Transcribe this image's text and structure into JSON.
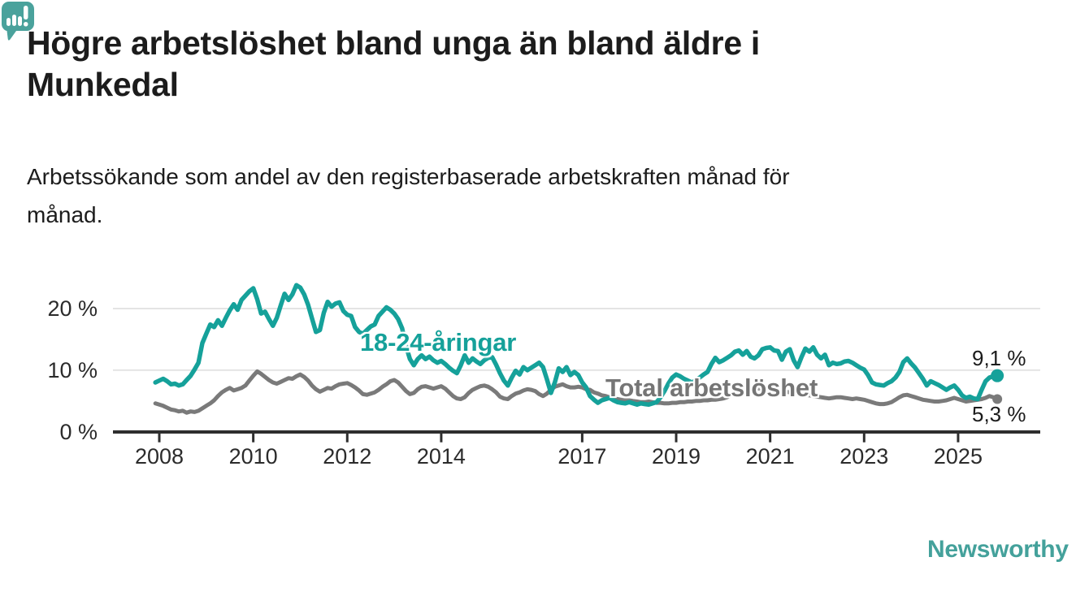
{
  "header": {
    "title_lines": [
      "Högre arbetslöshet bland unga än bland äldre i",
      "Munkedal"
    ],
    "subtitle_lines": [
      "Arbetssökande som andel av den registerbaserade arbetskraften månad för",
      "månad."
    ]
  },
  "chart_data": {
    "type": "line",
    "unit": "%",
    "grid": "horizontal",
    "x_axis": {
      "range_years": [
        2006.9,
        2026.8
      ],
      "ticks": [
        2008,
        2010,
        2012,
        2014,
        2017,
        2019,
        2021,
        2023,
        2025
      ]
    },
    "y_axis": {
      "range": [
        0,
        26
      ],
      "ticks": [
        {
          "value": 0,
          "label": "0 %"
        },
        {
          "value": 10,
          "label": "10 %"
        },
        {
          "value": 20,
          "label": "20 %"
        }
      ]
    },
    "series": [
      {
        "name": "18-24-åringar",
        "color": "#15a19a",
        "end_label": "9,1 %",
        "end_value": 9.1,
        "x_start": 2007.917,
        "x_step_months": 1,
        "values": [
          8.0,
          8.3,
          8.6,
          8.2,
          7.7,
          7.8,
          7.5,
          7.7,
          8.4,
          9.1,
          10.1,
          11.2,
          14.4,
          15.9,
          17.4,
          17.0,
          18.1,
          17.2,
          18.5,
          19.7,
          20.7,
          19.8,
          21.4,
          22.1,
          22.8,
          23.3,
          21.5,
          19.2,
          19.5,
          18.3,
          17.2,
          18.5,
          20.5,
          22.4,
          21.4,
          22.3,
          23.8,
          23.4,
          22.3,
          20.6,
          18.4,
          16.2,
          16.5,
          19.3,
          21.1,
          20.3,
          20.8,
          21.0,
          19.6,
          19.0,
          18.8,
          17.0,
          16.2,
          15.9,
          16.5,
          17.1,
          17.4,
          18.8,
          19.5,
          20.2,
          19.8,
          19.2,
          18.3,
          16.8,
          13.9,
          11.8,
          10.8,
          11.8,
          12.4,
          11.8,
          12.2,
          11.6,
          11.2,
          11.5,
          11.0,
          10.4,
          9.9,
          9.5,
          10.8,
          12.4,
          11.2,
          11.9,
          11.4,
          11.0,
          11.6,
          12.0,
          12.1,
          10.9,
          9.5,
          8.3,
          7.5,
          8.8,
          9.9,
          9.3,
          10.5,
          10.0,
          10.4,
          10.8,
          11.2,
          10.5,
          8.5,
          6.3,
          8.0,
          10.3,
          9.7,
          10.5,
          9.2,
          9.7,
          9.2,
          8.0,
          7.2,
          5.8,
          5.2,
          4.7,
          5.1,
          5.3,
          5.5,
          5.1,
          4.8,
          4.7,
          4.6,
          4.8,
          4.6,
          4.4,
          4.6,
          4.5,
          4.4,
          4.6,
          4.8,
          5.6,
          6.6,
          7.8,
          8.8,
          9.3,
          9.0,
          8.6,
          8.3,
          8.0,
          8.3,
          8.8,
          9.3,
          9.7,
          11.0,
          12.0,
          11.3,
          11.6,
          12.0,
          12.4,
          13.0,
          13.2,
          12.5,
          13.1,
          12.2,
          11.9,
          12.4,
          13.4,
          13.6,
          13.7,
          13.2,
          13.1,
          11.7,
          13.0,
          13.4,
          11.6,
          10.5,
          12.1,
          13.5,
          13.0,
          13.7,
          12.5,
          11.9,
          12.5,
          10.8,
          11.2,
          11.0,
          11.1,
          11.4,
          11.5,
          11.2,
          10.8,
          10.4,
          10.1,
          9.2,
          8.0,
          7.7,
          7.6,
          7.5,
          7.9,
          8.2,
          8.8,
          9.7,
          11.3,
          11.9,
          11.1,
          10.4,
          9.5,
          8.6,
          7.5,
          8.2,
          7.9,
          7.6,
          7.2,
          6.8,
          7.2,
          7.5,
          6.8,
          5.9,
          5.5,
          5.7,
          5.4,
          5.3,
          6.8,
          8.2,
          8.8,
          9.0,
          9.1
        ]
      },
      {
        "name": "Total arbetslöshet",
        "color": "#7a7a7a",
        "end_label": "5,3 %",
        "end_value": 5.3,
        "x_start": 2007.917,
        "x_step_months": 1,
        "values": [
          4.6,
          4.4,
          4.2,
          3.9,
          3.6,
          3.5,
          3.3,
          3.4,
          3.1,
          3.3,
          3.2,
          3.4,
          3.8,
          4.2,
          4.6,
          5.1,
          5.8,
          6.4,
          6.8,
          7.1,
          6.7,
          6.9,
          7.1,
          7.5,
          8.3,
          9.1,
          9.8,
          9.4,
          8.9,
          8.4,
          8.0,
          7.8,
          8.1,
          8.4,
          8.7,
          8.6,
          9.0,
          9.3,
          8.9,
          8.3,
          7.5,
          6.9,
          6.5,
          6.8,
          7.1,
          7.0,
          7.4,
          7.7,
          7.8,
          7.9,
          7.6,
          7.2,
          6.7,
          6.1,
          6.0,
          6.2,
          6.4,
          6.8,
          7.3,
          7.7,
          8.2,
          8.4,
          8.0,
          7.3,
          6.6,
          6.1,
          6.3,
          6.9,
          7.3,
          7.4,
          7.2,
          7.0,
          7.2,
          7.4,
          7.0,
          6.4,
          5.8,
          5.4,
          5.3,
          5.6,
          6.3,
          6.8,
          7.1,
          7.4,
          7.5,
          7.3,
          6.9,
          6.4,
          5.7,
          5.4,
          5.3,
          5.8,
          6.2,
          6.4,
          6.7,
          6.9,
          6.8,
          6.6,
          6.1,
          5.8,
          6.2,
          6.8,
          7.3,
          7.5,
          7.7,
          7.4,
          7.2,
          7.2,
          7.3,
          7.2,
          6.9,
          6.8,
          6.4,
          6.2,
          5.9,
          5.8,
          5.6,
          5.4,
          5.3,
          5.2,
          5.1,
          5.1,
          5.0,
          4.9,
          4.8,
          4.8,
          4.9,
          4.8,
          4.7,
          4.7,
          4.6,
          4.6,
          4.7,
          4.7,
          4.8,
          4.8,
          4.9,
          4.9,
          5.0,
          5.0,
          5.1,
          5.1,
          5.2,
          5.2,
          5.3,
          5.4,
          5.6,
          6.0,
          6.5,
          6.8,
          7.0,
          7.1,
          7.1,
          7.0,
          7.0,
          7.1,
          7.1,
          7.0,
          6.9,
          6.8,
          6.6,
          6.5,
          6.4,
          6.3,
          6.2,
          6.1,
          6.0,
          5.9,
          5.8,
          5.7,
          5.6,
          5.5,
          5.4,
          5.5,
          5.6,
          5.6,
          5.5,
          5.4,
          5.3,
          5.4,
          5.3,
          5.2,
          5.0,
          4.8,
          4.6,
          4.5,
          4.5,
          4.6,
          4.8,
          5.2,
          5.6,
          5.9,
          6.0,
          5.8,
          5.6,
          5.4,
          5.2,
          5.1,
          5.0,
          4.9,
          4.9,
          5.0,
          5.1,
          5.3,
          5.5,
          5.3,
          5.1,
          4.9,
          5.0,
          5.1,
          5.2,
          5.3,
          5.5,
          5.8,
          5.6,
          5.3
        ]
      }
    ]
  },
  "footer": {
    "brand": "Newsworthy",
    "brand_color": "#44a19b",
    "logo_icon": "bar-chart-speech-bubble"
  }
}
